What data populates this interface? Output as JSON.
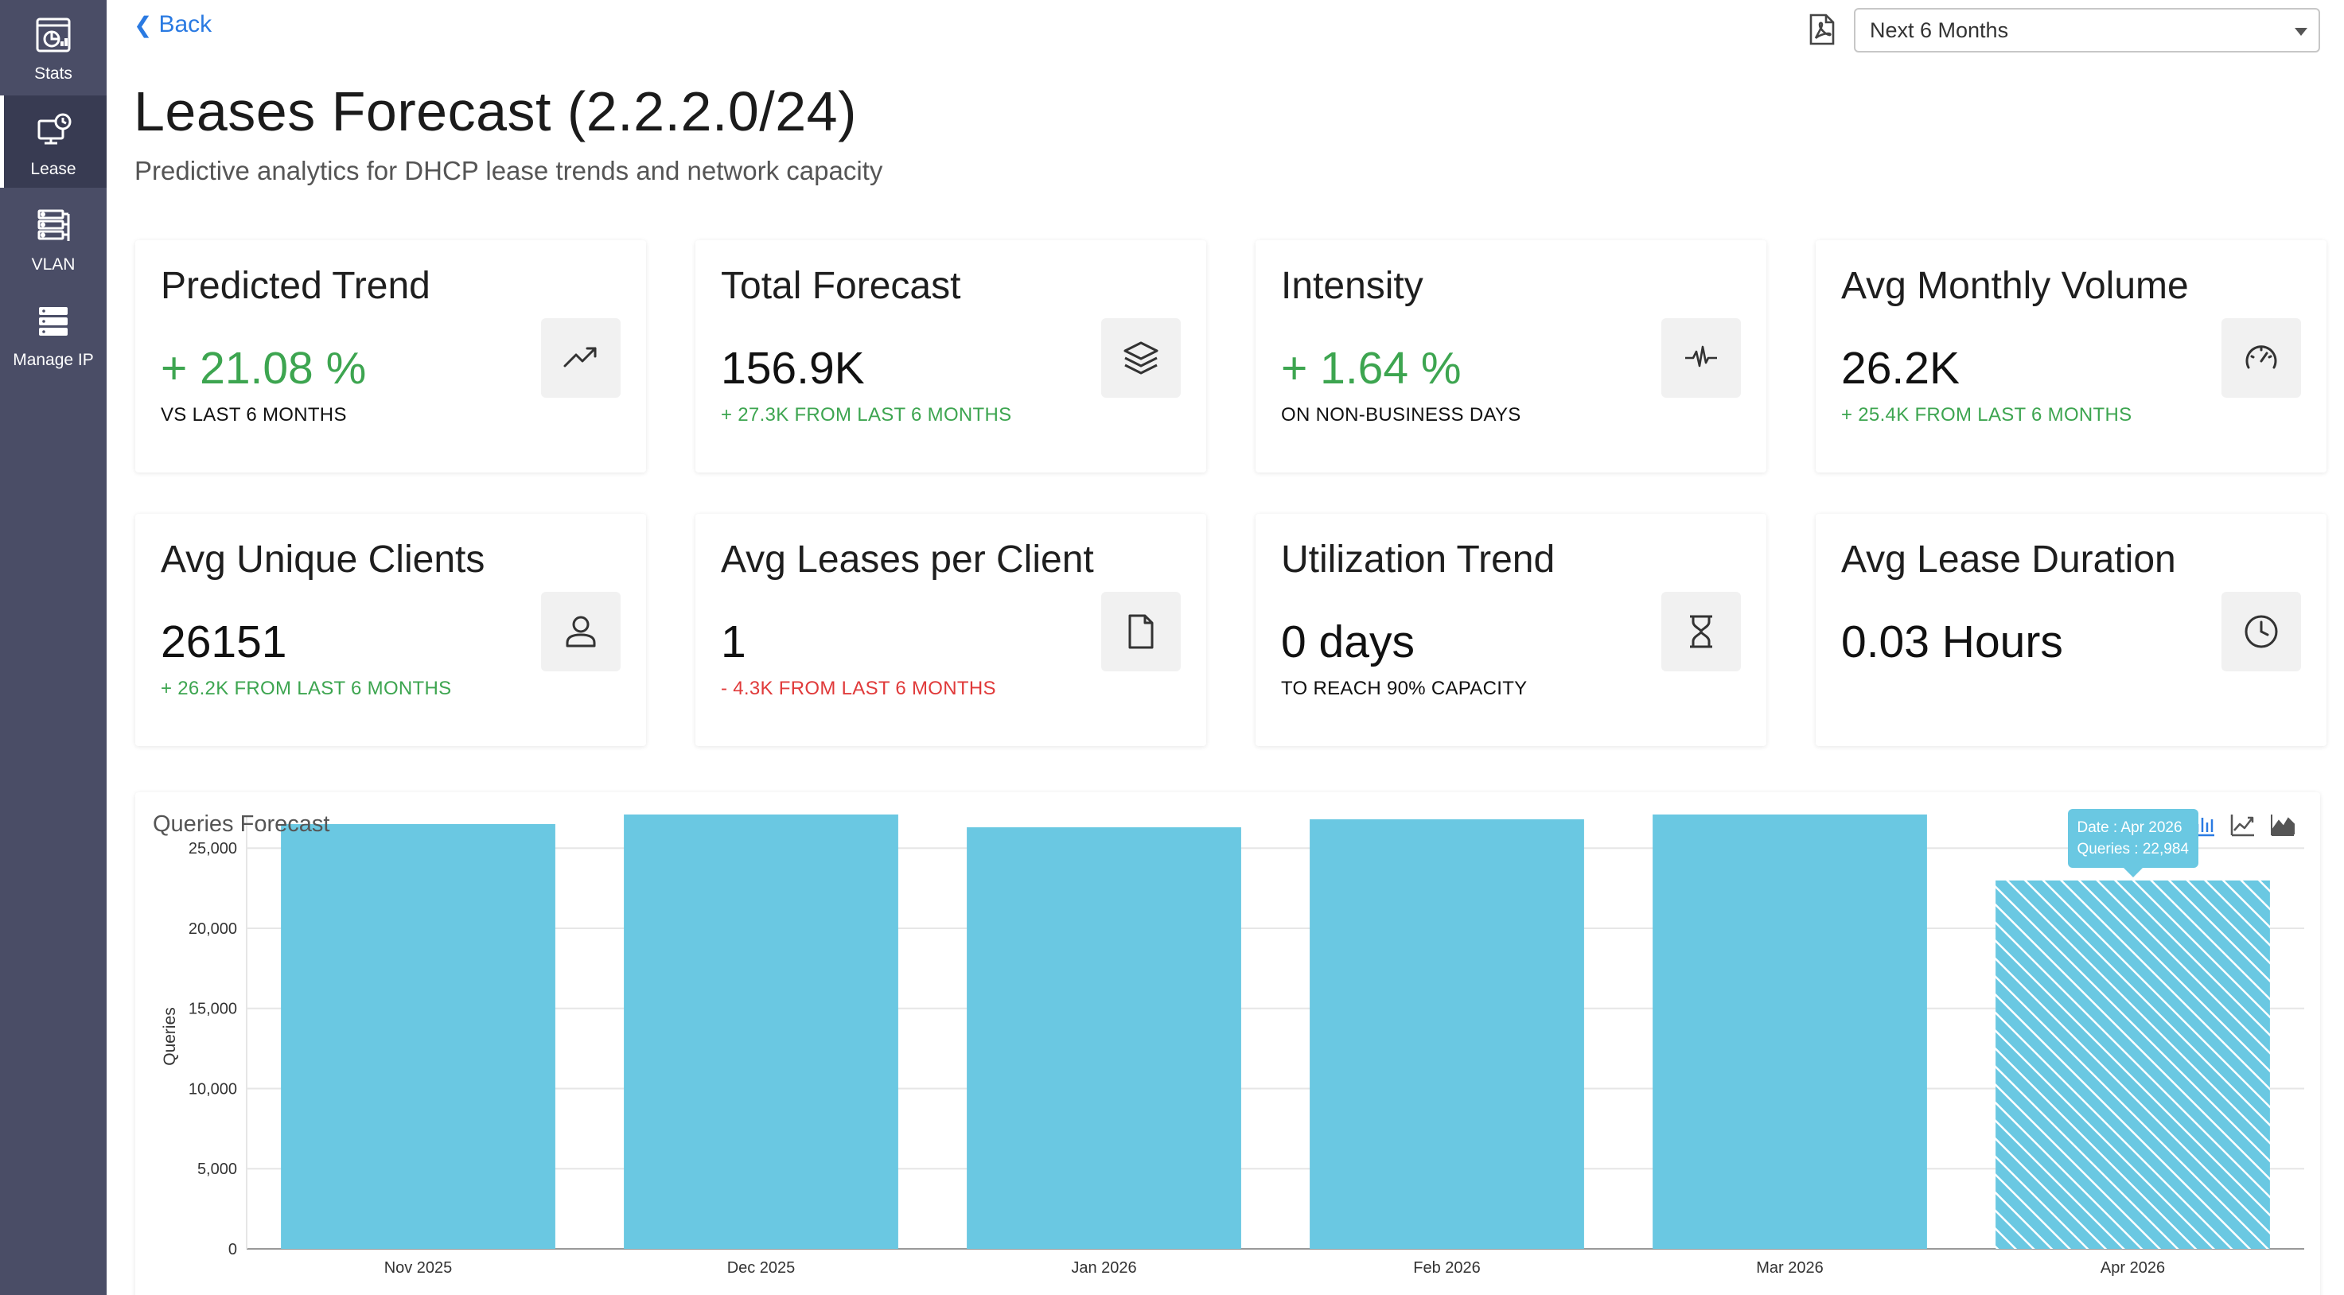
{
  "sidebar": {
    "items": [
      {
        "label": "Stats",
        "icon": "stats-icon"
      },
      {
        "label": "Lease",
        "icon": "lease-icon",
        "active": true
      },
      {
        "label": "VLAN",
        "icon": "vlan-icon"
      },
      {
        "label": "Manage IP",
        "icon": "manage-ip-icon"
      }
    ]
  },
  "header": {
    "back_label": "Back",
    "range_value": "Next 6 Months",
    "title": "Leases Forecast (2.2.2.0/24)",
    "subtitle": "Predictive analytics for DHCP lease trends and network capacity"
  },
  "cards": [
    {
      "title": "Predicted Trend",
      "value": "+ 21.08 %",
      "sub": "VS LAST 6 MONTHS",
      "icon": "trending-up-icon",
      "value_tone": "pos",
      "sub_tone": ""
    },
    {
      "title": "Total Forecast",
      "value": "156.9K",
      "sub": "+ 27.3K FROM LAST 6 MONTHS",
      "icon": "layers-icon",
      "value_tone": "",
      "sub_tone": "pos"
    },
    {
      "title": "Intensity",
      "value": "+ 1.64 %",
      "sub": "ON NON-BUSINESS DAYS",
      "icon": "pulse-icon",
      "value_tone": "pos",
      "sub_tone": ""
    },
    {
      "title": "Avg Monthly Volume",
      "value": "26.2K",
      "sub": "+ 25.4K FROM LAST 6 MONTHS",
      "icon": "gauge-icon",
      "value_tone": "",
      "sub_tone": "pos"
    },
    {
      "title": "Avg Unique Clients",
      "value": "26151",
      "sub": "+ 26.2K FROM LAST 6 MONTHS",
      "icon": "user-icon",
      "value_tone": "",
      "sub_tone": "pos"
    },
    {
      "title": "Avg Leases per Client",
      "value": "1",
      "sub": "- 4.3K FROM LAST 6 MONTHS",
      "icon": "file-icon",
      "value_tone": "",
      "sub_tone": "neg"
    },
    {
      "title": "Utilization Trend",
      "value": "0 days",
      "sub": "TO REACH 90% CAPACITY",
      "icon": "hourglass-icon",
      "value_tone": "",
      "sub_tone": ""
    },
    {
      "title": "Avg Lease Duration",
      "value": "0.03 Hours",
      "sub": "",
      "icon": "clock-icon",
      "value_tone": "",
      "sub_tone": ""
    }
  ],
  "colors": {
    "accent": "#2a7ae2",
    "bar": "#6ac8e2",
    "positive": "#3da550",
    "negative": "#e03a3a",
    "sidebar": "#4a4d66"
  },
  "chart_data": {
    "type": "bar",
    "title": "Queries Forecast",
    "xlabel": "",
    "ylabel": "Queries",
    "categories": [
      "Nov 2025",
      "Dec 2025",
      "Jan 2026",
      "Feb 2026",
      "Mar 2026",
      "Apr 2026"
    ],
    "values": [
      26500,
      27100,
      26300,
      26800,
      27100,
      22984
    ],
    "forecast_hatched": [
      false,
      false,
      false,
      false,
      false,
      true
    ],
    "ylim": [
      0,
      26500
    ],
    "yticks": [
      0,
      5000,
      10000,
      15000,
      20000,
      25000
    ],
    "ytick_labels": [
      "0",
      "5,000",
      "10,000",
      "15,000",
      "20,000",
      "25,000"
    ],
    "grid": true,
    "tooltip": {
      "index": 5,
      "date_line": "Date : Apr 2026",
      "queries_line": "Queries : 22,984"
    },
    "tools": [
      "bar-chart-icon",
      "line-chart-icon",
      "area-chart-icon"
    ]
  }
}
